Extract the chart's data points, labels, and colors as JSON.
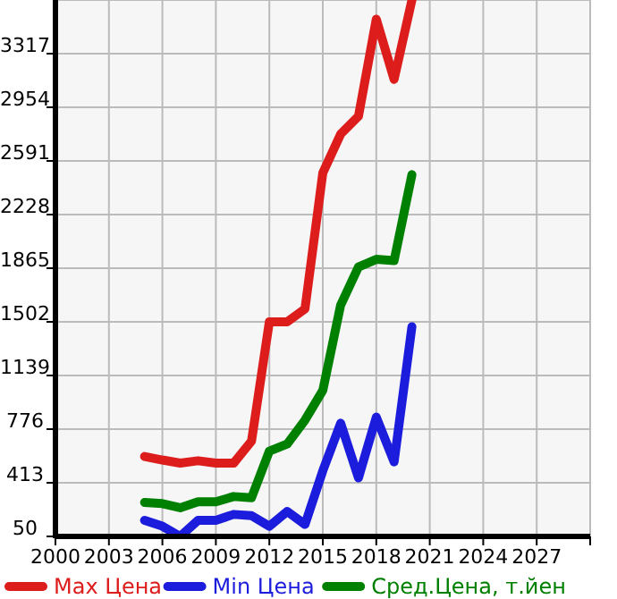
{
  "chart_data": {
    "type": "line",
    "x": [
      2005,
      2006,
      2007,
      2008,
      2009,
      2010,
      2011,
      2012,
      2013,
      2014,
      2015,
      2016,
      2017,
      2018,
      2019,
      2020
    ],
    "series": [
      {
        "name": "Max Цена",
        "color": "#dd1c1c",
        "values": [
          591,
          567,
          546,
          562,
          546,
          546,
          695,
          1502,
          1502,
          1590,
          2510,
          2772,
          2893,
          3550,
          3143,
          3680
        ]
      },
      {
        "name": "Min Цена",
        "color": "#1c1cdd",
        "values": [
          159,
          119,
          50,
          159,
          159,
          199,
          191,
          119,
          219,
          131,
          494,
          816,
          446,
          857,
          554,
          1469
        ]
      },
      {
        "name": "Сред.Цена, т.йен",
        "color": "#008000",
        "values": [
          280,
          272,
          244,
          284,
          284,
          320,
          312,
          627,
          675,
          837,
          1038,
          1615,
          1873,
          1925,
          1917,
          2498
        ]
      }
    ],
    "xlim": [
      2000,
      2030
    ],
    "xticks": [
      2000,
      2003,
      2006,
      2009,
      2012,
      2015,
      2018,
      2021,
      2024,
      2027
    ],
    "ylim": [
      50,
      3680
    ],
    "yticks": [
      50,
      413,
      776,
      1139,
      1502,
      1865,
      2228,
      2591,
      2954,
      3317
    ],
    "grid": true,
    "legend": "bottom",
    "marker": "none",
    "line_style": "solid"
  }
}
